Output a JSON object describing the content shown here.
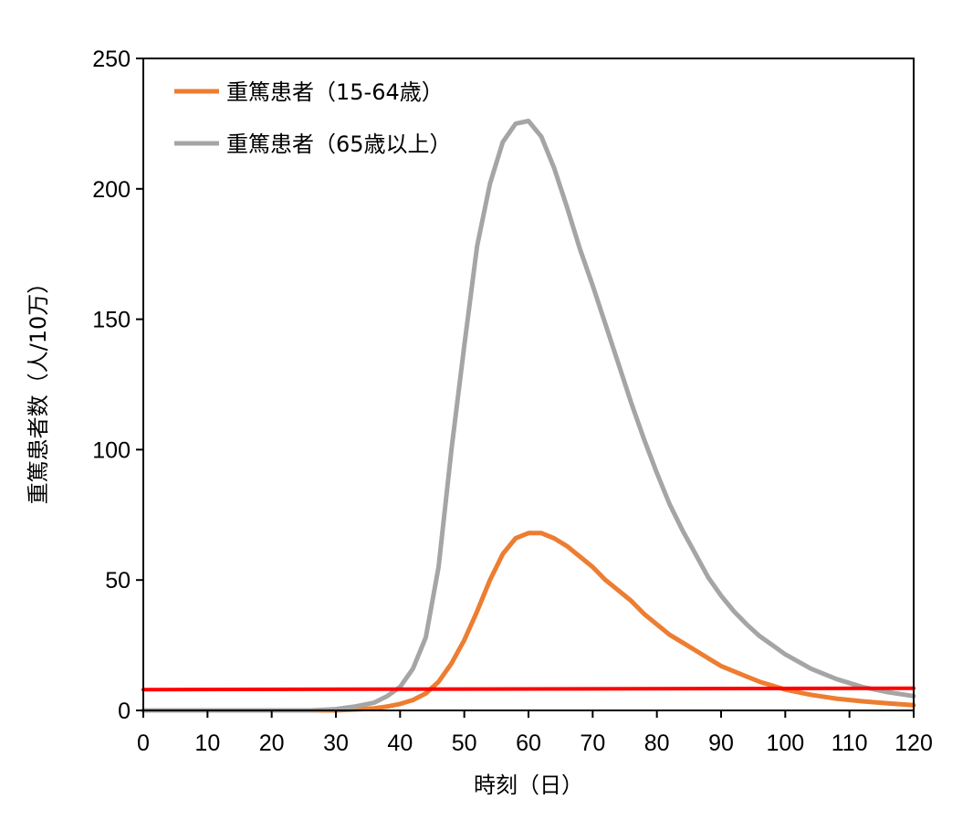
{
  "chart_data": {
    "type": "line",
    "xlabel": "時刻（日）",
    "ylabel": "重篤患者数（人/10万）",
    "xlim": [
      0,
      120
    ],
    "ylim": [
      0,
      250
    ],
    "x_ticks": [
      0,
      10,
      20,
      30,
      40,
      50,
      60,
      70,
      80,
      90,
      100,
      110,
      120
    ],
    "y_ticks": [
      0,
      50,
      100,
      150,
      200,
      250
    ],
    "grid": false,
    "legend_position": "top-left",
    "series": [
      {
        "name": "重篤患者（15-64歳）",
        "color": "#ED7D31",
        "x": [
          0,
          30,
          34,
          36,
          38,
          40,
          42,
          44,
          46,
          48,
          50,
          52,
          54,
          56,
          58,
          60,
          62,
          64,
          66,
          68,
          70,
          72,
          74,
          76,
          78,
          80,
          82,
          84,
          86,
          88,
          90,
          92,
          94,
          96,
          98,
          100,
          104,
          108,
          112,
          116,
          120
        ],
        "y": [
          0,
          0,
          0.5,
          0.8,
          1.5,
          2.5,
          4,
          6.5,
          11,
          18,
          27,
          38,
          50,
          60,
          66,
          68,
          68,
          66,
          63,
          59,
          55,
          50,
          46,
          42,
          37,
          33,
          29,
          26,
          23,
          20,
          17,
          15,
          13,
          11,
          9.5,
          8,
          6,
          4.5,
          3.5,
          2.7,
          2
        ]
      },
      {
        "name": "重篤患者（65歳以上）",
        "color": "#A5A5A5",
        "x": [
          0,
          26,
          30,
          33,
          36,
          38,
          40,
          42,
          44,
          46,
          48,
          50,
          52,
          54,
          56,
          58,
          60,
          62,
          64,
          66,
          68,
          70,
          72,
          74,
          76,
          78,
          80,
          82,
          84,
          86,
          88,
          90,
          92,
          94,
          96,
          98,
          100,
          104,
          108,
          112,
          116,
          120
        ],
        "y": [
          0,
          0,
          0.5,
          1.5,
          3,
          5.5,
          9,
          16,
          28,
          55,
          100,
          140,
          178,
          202,
          218,
          225,
          226,
          220,
          208,
          193,
          177,
          163,
          148,
          133,
          118,
          104,
          91,
          79,
          69,
          60,
          51,
          44,
          38,
          33,
          28.5,
          25,
          21.5,
          16,
          12,
          9,
          7,
          5.5
        ]
      },
      {
        "name": "",
        "color": "#FF0000",
        "x": [
          0,
          120
        ],
        "y": [
          8,
          8.5
        ]
      }
    ]
  }
}
